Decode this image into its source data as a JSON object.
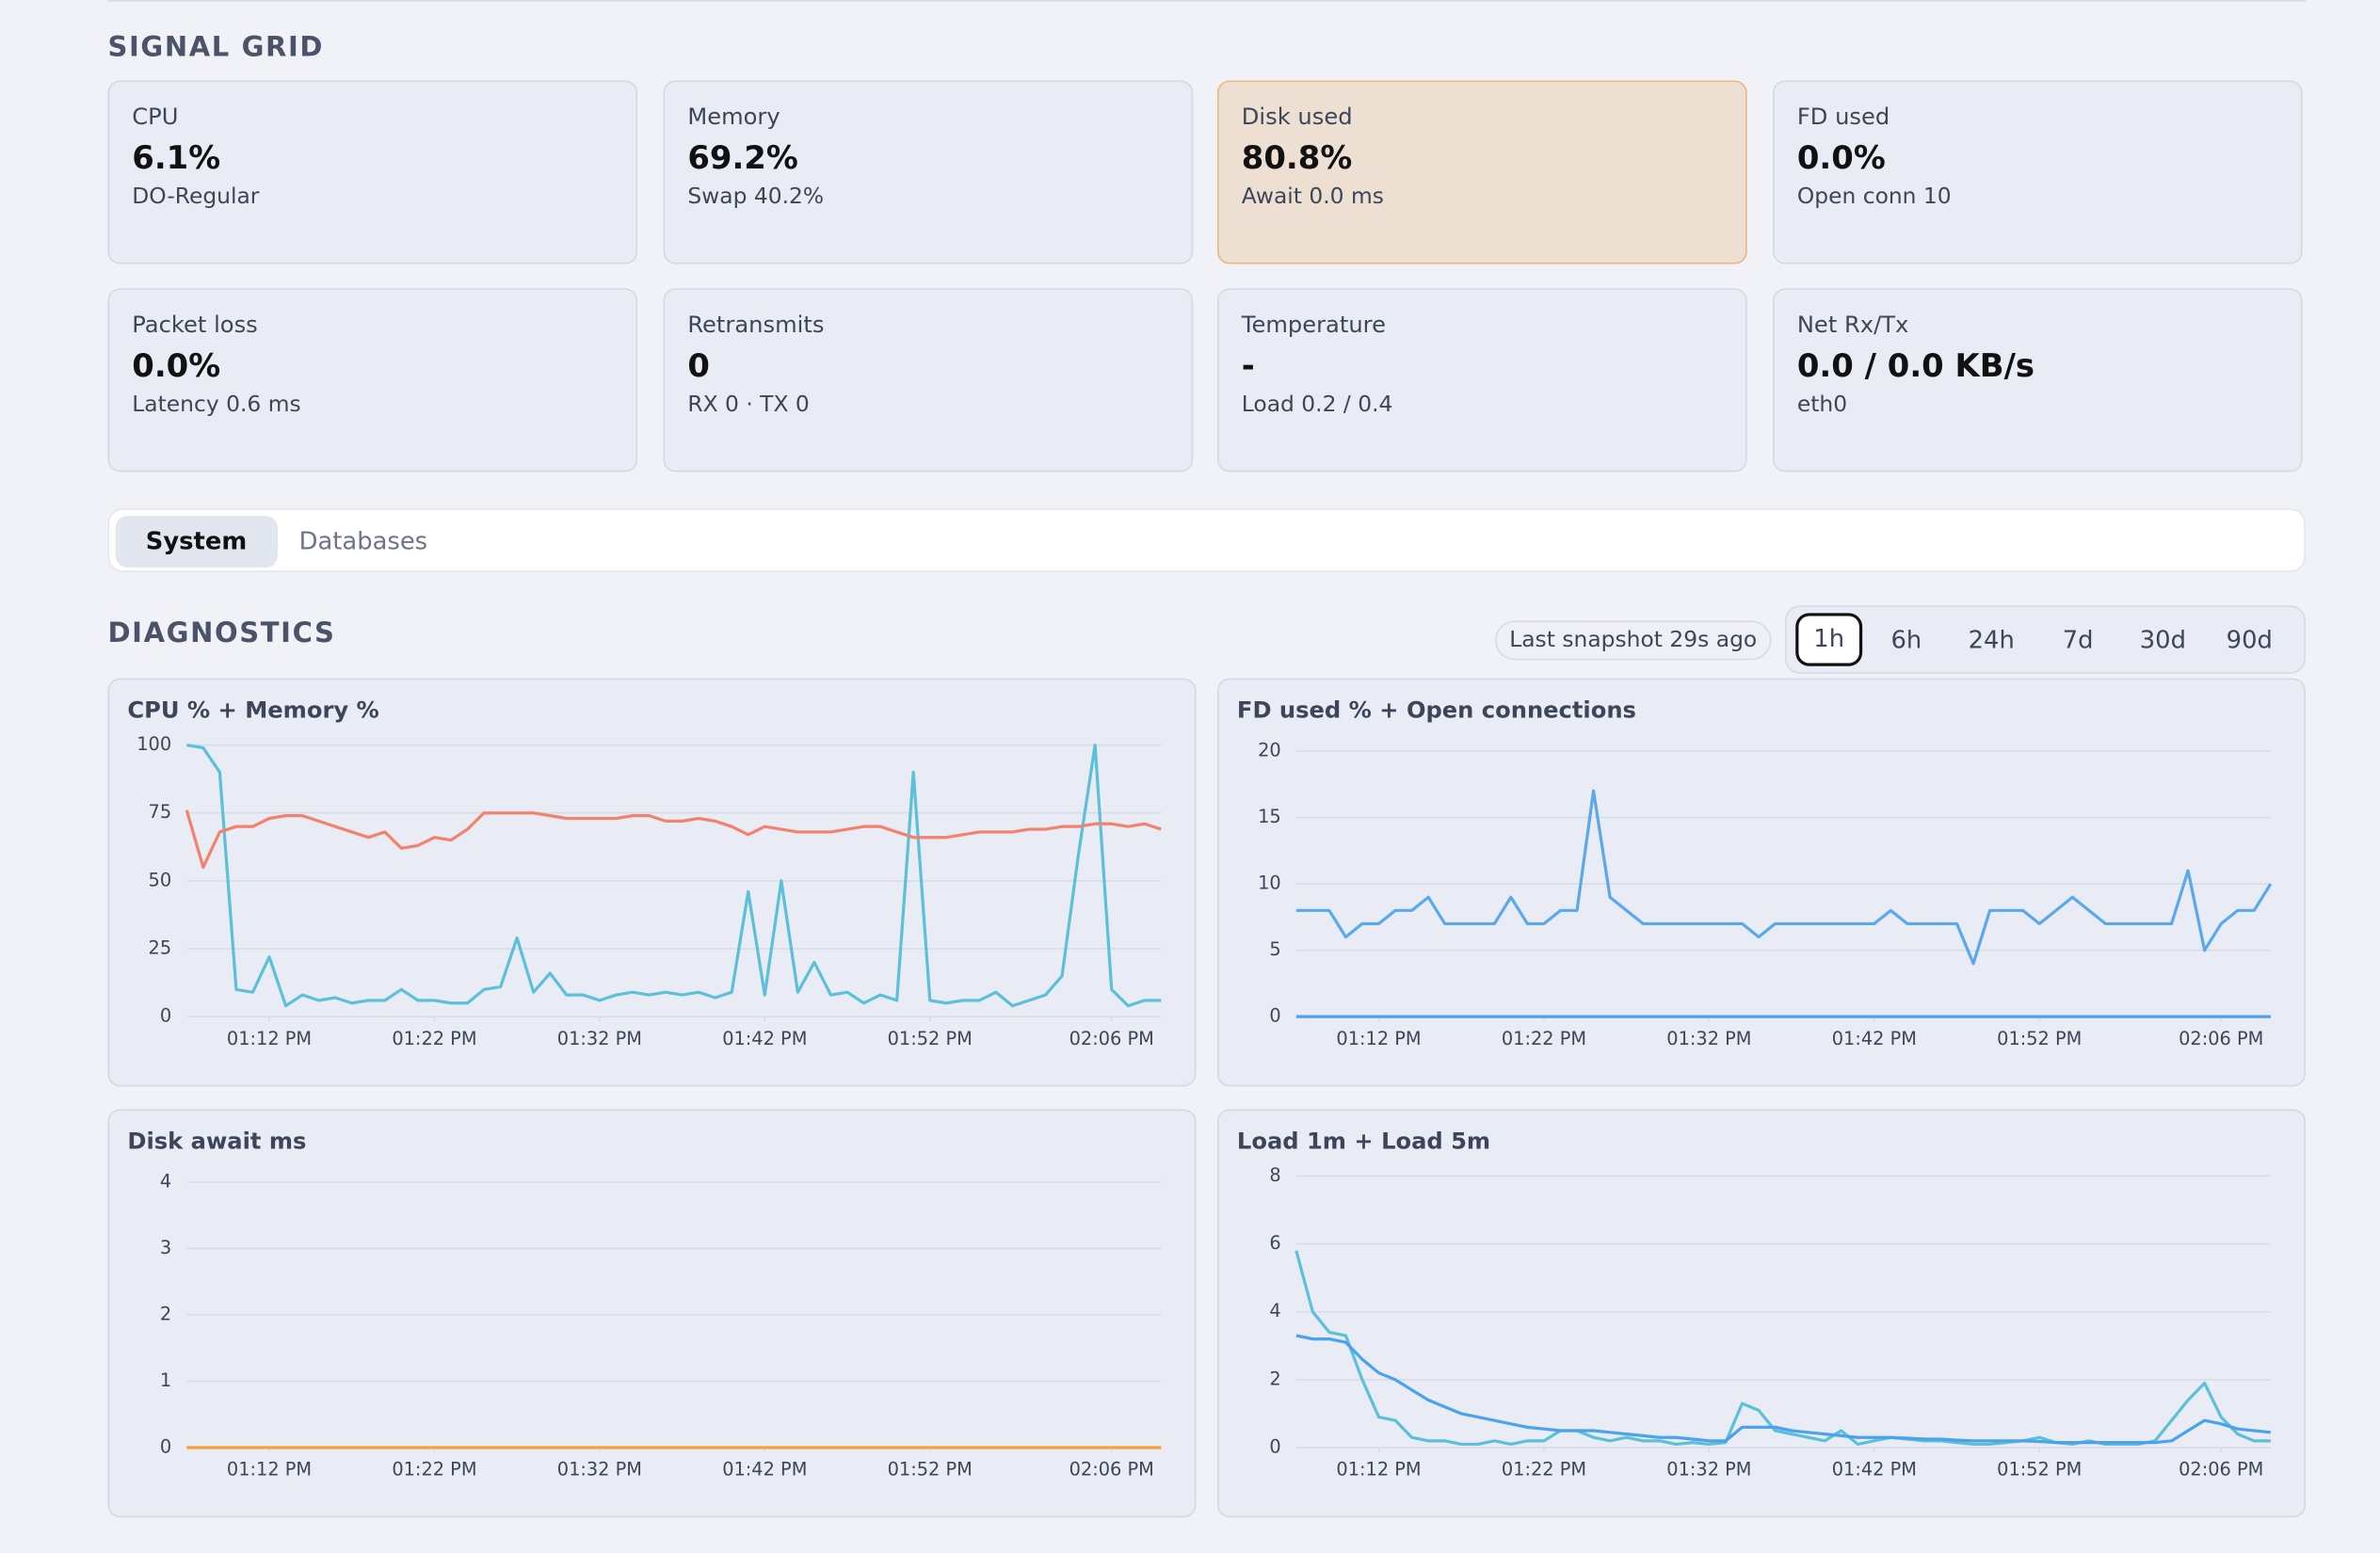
{
  "header": {
    "title": "SIGNAL GRID"
  },
  "cards": [
    {
      "label": "CPU",
      "value": "6.1%",
      "sub": "DO-Regular"
    },
    {
      "label": "Memory",
      "value": "69.2%",
      "sub": "Swap 40.2%"
    },
    {
      "label": "Disk used",
      "value": "80.8%",
      "sub": "Await 0.0 ms"
    },
    {
      "label": "FD used",
      "value": "0.0%",
      "sub": "Open conn 10"
    },
    {
      "label": "Packet loss",
      "value": "0.0%",
      "sub": "Latency 0.6 ms"
    },
    {
      "label": "Retransmits",
      "value": "0",
      "sub": "RX 0 · TX 0"
    },
    {
      "label": "Temperature",
      "value": "-",
      "sub": "Load 0.2 / 0.4"
    },
    {
      "label": "Net Rx/Tx",
      "value": "0.0 / 0.0 KB/s",
      "sub": "eth0"
    }
  ],
  "tabs": [
    "System",
    "Databases"
  ],
  "diagnostics": {
    "title": "DIAGNOSTICS",
    "snapshot": "Last snapshot 29s ago",
    "ranges": [
      "1h",
      "6h",
      "24h",
      "7d",
      "30d",
      "90d"
    ]
  },
  "chart_data": [
    {
      "type": "line",
      "title": "CPU % + Memory %",
      "x": [
        0,
        1,
        2,
        3,
        4,
        5,
        6,
        7,
        8,
        9,
        10,
        11,
        12,
        13,
        14,
        15,
        16,
        17,
        18,
        19,
        20,
        21,
        22,
        23,
        24,
        25,
        26,
        27,
        28,
        29,
        30,
        31,
        32,
        33,
        34,
        35,
        36,
        37,
        38,
        39,
        40,
        41,
        42,
        43,
        44,
        45,
        46,
        47,
        48,
        49,
        50,
        51,
        52,
        53,
        54,
        55,
        56,
        57,
        58,
        59
      ],
      "xlim": [
        0,
        59
      ],
      "xticks": [
        {
          "value": 5,
          "label": "01:12 PM"
        },
        {
          "value": 15,
          "label": "01:22 PM"
        },
        {
          "value": 25,
          "label": "01:32 PM"
        },
        {
          "value": 35,
          "label": "01:42 PM"
        },
        {
          "value": 45,
          "label": "01:52 PM"
        },
        {
          "value": 56,
          "label": "02:06 PM"
        }
      ],
      "ylim": [
        0,
        100
      ],
      "yticks": [
        0,
        25,
        50,
        75,
        100
      ],
      "grid": true,
      "series": [
        {
          "color": "#5bc0d8",
          "values": [
            100,
            99,
            90,
            10,
            9,
            22,
            4,
            8,
            6,
            7,
            5,
            6,
            6,
            10,
            6,
            6,
            5,
            5,
            10,
            11,
            29,
            9,
            16,
            8,
            8,
            6,
            8,
            9,
            8,
            9,
            8,
            9,
            7,
            9,
            46,
            8,
            50,
            9,
            20,
            8,
            9,
            5,
            8,
            6,
            90,
            6,
            5,
            6,
            6,
            9,
            4,
            6,
            8,
            15,
            60,
            100,
            10,
            4,
            6,
            6
          ]
        },
        {
          "color": "#f2826d",
          "values": [
            76,
            55,
            68,
            70,
            70,
            73,
            74,
            74,
            72,
            70,
            68,
            66,
            68,
            62,
            63,
            66,
            65,
            69,
            75,
            75,
            75,
            75,
            74,
            73,
            73,
            73,
            73,
            74,
            74,
            72,
            72,
            73,
            72,
            70,
            67,
            70,
            69,
            68,
            68,
            68,
            69,
            70,
            70,
            68,
            66,
            66,
            66,
            67,
            68,
            68,
            68,
            69,
            69,
            70,
            70,
            71,
            71,
            70,
            71,
            69
          ]
        }
      ]
    },
    {
      "type": "line",
      "title": "FD used % + Open connections",
      "x": [
        0,
        1,
        2,
        3,
        4,
        5,
        6,
        7,
        8,
        9,
        10,
        11,
        12,
        13,
        14,
        15,
        16,
        17,
        18,
        19,
        20,
        21,
        22,
        23,
        24,
        25,
        26,
        27,
        28,
        29,
        30,
        31,
        32,
        33,
        34,
        35,
        36,
        37,
        38,
        39,
        40,
        41,
        42,
        43,
        44,
        45,
        46,
        47,
        48,
        49,
        50,
        51,
        52,
        53,
        54,
        55,
        56,
        57,
        58,
        59
      ],
      "xlim": [
        0,
        59
      ],
      "xticks": [
        {
          "value": 5,
          "label": "01:12 PM"
        },
        {
          "value": 15,
          "label": "01:22 PM"
        },
        {
          "value": 25,
          "label": "01:32 PM"
        },
        {
          "value": 35,
          "label": "01:42 PM"
        },
        {
          "value": 45,
          "label": "01:52 PM"
        },
        {
          "value": 56,
          "label": "02:06 PM"
        }
      ],
      "ylim": [
        0,
        20
      ],
      "yticks": [
        0,
        5,
        10,
        15,
        20
      ],
      "grid": true,
      "series": [
        {
          "color": "#4aa3ec",
          "values": [
            0,
            0,
            0,
            0,
            0,
            0,
            0,
            0,
            0,
            0,
            0,
            0,
            0,
            0,
            0,
            0,
            0,
            0,
            0,
            0,
            0,
            0,
            0,
            0,
            0,
            0,
            0,
            0,
            0,
            0,
            0,
            0,
            0,
            0,
            0,
            0,
            0,
            0,
            0,
            0,
            0,
            0,
            0,
            0,
            0,
            0,
            0,
            0,
            0,
            0,
            0,
            0,
            0,
            0,
            0,
            0,
            0,
            0,
            0,
            0
          ]
        },
        {
          "color": "#5aa9ea",
          "values": [
            8,
            8,
            8,
            6,
            7,
            7,
            8,
            8,
            9,
            7,
            7,
            7,
            7,
            9,
            7,
            7,
            8,
            8,
            17,
            9,
            8,
            7,
            7,
            7,
            7,
            7,
            7,
            7,
            6,
            7,
            7,
            7,
            7,
            7,
            7,
            7,
            8,
            7,
            7,
            7,
            7,
            4,
            8,
            8,
            8,
            7,
            8,
            9,
            8,
            7,
            7,
            7,
            7,
            7,
            11,
            5,
            7,
            8,
            8,
            10
          ]
        }
      ]
    },
    {
      "type": "line",
      "title": "Disk await ms",
      "x": [
        0,
        1,
        2,
        3,
        4,
        5,
        6,
        7,
        8,
        9,
        10,
        11,
        12,
        13,
        14,
        15,
        16,
        17,
        18,
        19,
        20,
        21,
        22,
        23,
        24,
        25,
        26,
        27,
        28,
        29,
        30,
        31,
        32,
        33,
        34,
        35,
        36,
        37,
        38,
        39,
        40,
        41,
        42,
        43,
        44,
        45,
        46,
        47,
        48,
        49,
        50,
        51,
        52,
        53,
        54,
        55,
        56,
        57,
        58,
        59
      ],
      "xlim": [
        0,
        59
      ],
      "xticks": [
        {
          "value": 5,
          "label": "01:12 PM"
        },
        {
          "value": 15,
          "label": "01:22 PM"
        },
        {
          "value": 25,
          "label": "01:32 PM"
        },
        {
          "value": 35,
          "label": "01:42 PM"
        },
        {
          "value": 45,
          "label": "01:52 PM"
        },
        {
          "value": 56,
          "label": "02:06 PM"
        }
      ],
      "ylim": [
        0,
        4
      ],
      "yticks": [
        0,
        1,
        2,
        3,
        4
      ],
      "grid": true,
      "series": [
        {
          "color": "#f5a142",
          "values": [
            0,
            0,
            0,
            0,
            0,
            0,
            0,
            0,
            0,
            0,
            0,
            0,
            0,
            0,
            0,
            0,
            0,
            0,
            0,
            0,
            0,
            0,
            0,
            0,
            0,
            0,
            0,
            0,
            0,
            0,
            0,
            0,
            0,
            0,
            0,
            0,
            0,
            0,
            0,
            0,
            0,
            0,
            0,
            0,
            0,
            0,
            0,
            0,
            0,
            0,
            0,
            0,
            0,
            0,
            0,
            0,
            0,
            0,
            0,
            0
          ]
        }
      ]
    },
    {
      "type": "line",
      "title": "Load 1m + Load 5m",
      "x": [
        0,
        1,
        2,
        3,
        4,
        5,
        6,
        7,
        8,
        9,
        10,
        11,
        12,
        13,
        14,
        15,
        16,
        17,
        18,
        19,
        20,
        21,
        22,
        23,
        24,
        25,
        26,
        27,
        28,
        29,
        30,
        31,
        32,
        33,
        34,
        35,
        36,
        37,
        38,
        39,
        40,
        41,
        42,
        43,
        44,
        45,
        46,
        47,
        48,
        49,
        50,
        51,
        52,
        53,
        54,
        55,
        56,
        57,
        58,
        59
      ],
      "xlim": [
        0,
        59
      ],
      "xticks": [
        {
          "value": 5,
          "label": "01:12 PM"
        },
        {
          "value": 15,
          "label": "01:22 PM"
        },
        {
          "value": 25,
          "label": "01:32 PM"
        },
        {
          "value": 35,
          "label": "01:42 PM"
        },
        {
          "value": 45,
          "label": "01:52 PM"
        },
        {
          "value": 56,
          "label": "02:06 PM"
        }
      ],
      "ylim": [
        0,
        8
      ],
      "yticks": [
        0,
        2,
        4,
        6,
        8
      ],
      "grid": true,
      "series": [
        {
          "color": "#5bc0d8",
          "values": [
            5.8,
            4.0,
            3.4,
            3.3,
            2.0,
            0.9,
            0.8,
            0.3,
            0.2,
            0.2,
            0.1,
            0.1,
            0.2,
            0.1,
            0.2,
            0.2,
            0.5,
            0.5,
            0.3,
            0.2,
            0.3,
            0.2,
            0.2,
            0.1,
            0.15,
            0.1,
            0.15,
            1.3,
            1.1,
            0.5,
            0.4,
            0.3,
            0.2,
            0.5,
            0.1,
            0.2,
            0.3,
            0.25,
            0.2,
            0.2,
            0.15,
            0.1,
            0.1,
            0.15,
            0.2,
            0.3,
            0.15,
            0.1,
            0.2,
            0.1,
            0.1,
            0.1,
            0.2,
            0.8,
            1.4,
            1.9,
            0.9,
            0.4,
            0.2,
            0.2
          ]
        },
        {
          "color": "#4aa3ec",
          "values": [
            3.3,
            3.2,
            3.2,
            3.1,
            2.6,
            2.2,
            2.0,
            1.7,
            1.4,
            1.2,
            1.0,
            0.9,
            0.8,
            0.7,
            0.6,
            0.55,
            0.5,
            0.5,
            0.5,
            0.45,
            0.4,
            0.35,
            0.3,
            0.3,
            0.25,
            0.2,
            0.2,
            0.6,
            0.6,
            0.6,
            0.5,
            0.45,
            0.4,
            0.35,
            0.3,
            0.3,
            0.3,
            0.28,
            0.25,
            0.25,
            0.22,
            0.2,
            0.2,
            0.2,
            0.2,
            0.18,
            0.15,
            0.15,
            0.15,
            0.15,
            0.15,
            0.15,
            0.15,
            0.2,
            0.5,
            0.8,
            0.7,
            0.55,
            0.5,
            0.45
          ]
        }
      ]
    }
  ]
}
